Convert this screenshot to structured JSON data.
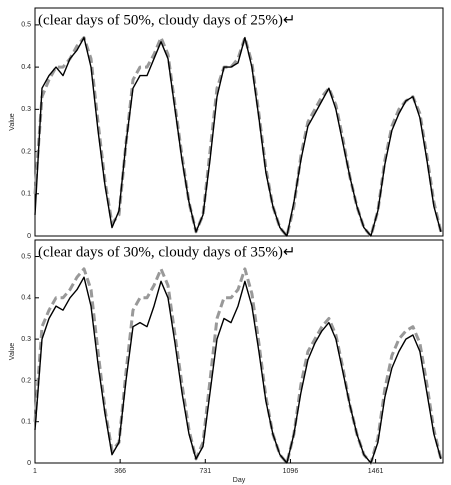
{
  "chart_data": [
    {
      "type": "line",
      "title": "(clear days of 50%, cloudy days of 25%)↵",
      "ylabel": "Value",
      "x": [
        1,
        31,
        61,
        91,
        121,
        151,
        181,
        211,
        241,
        271,
        301,
        331,
        361,
        391,
        421,
        451,
        481,
        511,
        541,
        571,
        601,
        631,
        661,
        691,
        721,
        751,
        781,
        811,
        841,
        871,
        901,
        931,
        961,
        991,
        1021,
        1051,
        1081,
        1111,
        1141,
        1171,
        1201,
        1231,
        1261,
        1291,
        1321,
        1351,
        1381,
        1411,
        1441,
        1471,
        1501,
        1531,
        1561,
        1591,
        1621,
        1651,
        1681,
        1711,
        1741
      ],
      "series": [
        {
          "color": "#999999",
          "dashed": true,
          "values": [
            0.1,
            0.33,
            0.37,
            0.4,
            0.4,
            0.42,
            0.45,
            0.47,
            0.42,
            0.27,
            0.13,
            0.03,
            0.05,
            0.22,
            0.37,
            0.4,
            0.4,
            0.43,
            0.47,
            0.43,
            0.31,
            0.19,
            0.08,
            0.01,
            0.05,
            0.2,
            0.35,
            0.4,
            0.4,
            0.42,
            0.47,
            0.41,
            0.29,
            0.16,
            0.07,
            0.02,
            0.0,
            0.07,
            0.19,
            0.27,
            0.3,
            0.33,
            0.35,
            0.31,
            0.23,
            0.14,
            0.07,
            0.02,
            0.0,
            0.06,
            0.18,
            0.26,
            0.3,
            0.32,
            0.33,
            0.29,
            0.19,
            0.08,
            0.01
          ]
        },
        {
          "color": "#000000",
          "dashed": false,
          "values": [
            0.05,
            0.35,
            0.38,
            0.4,
            0.38,
            0.42,
            0.44,
            0.47,
            0.4,
            0.25,
            0.12,
            0.02,
            0.06,
            0.22,
            0.35,
            0.38,
            0.38,
            0.42,
            0.46,
            0.42,
            0.3,
            0.18,
            0.08,
            0.01,
            0.05,
            0.18,
            0.33,
            0.4,
            0.4,
            0.41,
            0.47,
            0.4,
            0.28,
            0.15,
            0.07,
            0.02,
            0.0,
            0.08,
            0.18,
            0.26,
            0.29,
            0.32,
            0.35,
            0.3,
            0.22,
            0.14,
            0.07,
            0.02,
            0.0,
            0.06,
            0.17,
            0.25,
            0.29,
            0.32,
            0.33,
            0.28,
            0.18,
            0.07,
            0.01
          ]
        }
      ],
      "xlim": [
        1,
        1750
      ],
      "ylim": [
        0,
        0.54
      ],
      "yticks": [
        0,
        0.1,
        0.2,
        0.3,
        0.4,
        0.5
      ]
    },
    {
      "type": "line",
      "title": "(clear days of 30%, cloudy days of 35%)↵",
      "ylabel": "Value",
      "xlabel": "Day",
      "x": [
        1,
        31,
        61,
        91,
        121,
        151,
        181,
        211,
        241,
        271,
        301,
        331,
        361,
        391,
        421,
        451,
        481,
        511,
        541,
        571,
        601,
        631,
        661,
        691,
        721,
        751,
        781,
        811,
        841,
        871,
        901,
        931,
        961,
        991,
        1021,
        1051,
        1081,
        1111,
        1141,
        1171,
        1201,
        1231,
        1261,
        1291,
        1321,
        1351,
        1381,
        1411,
        1441,
        1471,
        1501,
        1531,
        1561,
        1591,
        1621,
        1651,
        1681,
        1711,
        1741
      ],
      "series": [
        {
          "color": "#999999",
          "dashed": true,
          "values": [
            0.1,
            0.33,
            0.37,
            0.4,
            0.4,
            0.42,
            0.45,
            0.47,
            0.42,
            0.27,
            0.13,
            0.03,
            0.05,
            0.22,
            0.37,
            0.4,
            0.4,
            0.43,
            0.47,
            0.43,
            0.31,
            0.19,
            0.08,
            0.01,
            0.05,
            0.2,
            0.35,
            0.4,
            0.4,
            0.42,
            0.47,
            0.41,
            0.29,
            0.16,
            0.07,
            0.02,
            0.0,
            0.07,
            0.19,
            0.27,
            0.3,
            0.33,
            0.35,
            0.31,
            0.23,
            0.14,
            0.07,
            0.02,
            0.0,
            0.06,
            0.18,
            0.26,
            0.3,
            0.32,
            0.33,
            0.29,
            0.19,
            0.08,
            0.01
          ]
        },
        {
          "color": "#000000",
          "dashed": false,
          "values": [
            0.08,
            0.3,
            0.35,
            0.38,
            0.37,
            0.4,
            0.42,
            0.45,
            0.38,
            0.24,
            0.12,
            0.02,
            0.05,
            0.2,
            0.33,
            0.34,
            0.33,
            0.38,
            0.44,
            0.4,
            0.29,
            0.17,
            0.07,
            0.01,
            0.04,
            0.17,
            0.3,
            0.35,
            0.34,
            0.38,
            0.44,
            0.38,
            0.27,
            0.15,
            0.07,
            0.02,
            0.0,
            0.07,
            0.17,
            0.25,
            0.29,
            0.32,
            0.34,
            0.3,
            0.22,
            0.14,
            0.07,
            0.02,
            0.0,
            0.05,
            0.16,
            0.23,
            0.27,
            0.3,
            0.31,
            0.27,
            0.17,
            0.07,
            0.01
          ]
        }
      ],
      "xlim": [
        1,
        1750
      ],
      "ylim": [
        0,
        0.54
      ],
      "yticks": [
        0,
        0.1,
        0.2,
        0.3,
        0.4,
        0.5
      ],
      "xticks": [
        1,
        366,
        731,
        1096,
        1461
      ]
    }
  ]
}
